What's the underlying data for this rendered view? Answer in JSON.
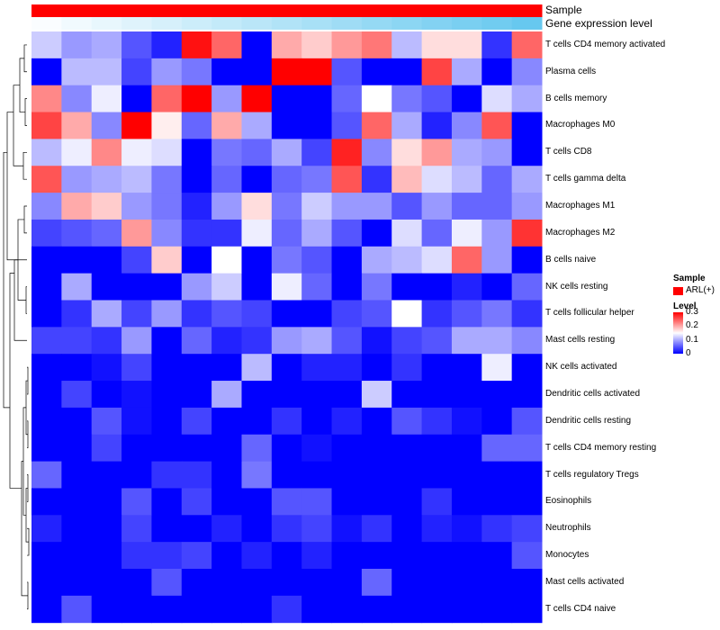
{
  "chart_data": {
    "type": "heatmap",
    "title": "",
    "rows": [
      "T cells CD4 memory activated",
      "Plasma cells",
      "B cells memory",
      "Macrophages M0",
      "T cells CD8",
      "T cells gamma delta",
      "Macrophages M1",
      "Macrophages M2",
      "B cells naive",
      "NK cells resting",
      "T cells follicular helper",
      "Mast cells resting",
      "NK cells activated",
      "Dendritic cells activated",
      "Dendritic cells resting",
      "T cells CD4 memory resting",
      "T cells regulatory  Tregs",
      "Eosinophils",
      "Neutrophils",
      "Monocytes",
      "Mast cells activated",
      "T cells CD4 naive"
    ],
    "n_columns": 17,
    "values": [
      [
        0.12,
        0.09,
        0.1,
        0.05,
        0.02,
        0.29,
        0.24,
        0.0,
        0.2,
        0.18,
        0.21,
        0.23,
        0.11,
        0.17,
        0.17,
        0.03,
        0.24
      ],
      [
        0.0,
        0.11,
        0.11,
        0.04,
        0.09,
        0.07,
        0.0,
        0.0,
        0.3,
        0.3,
        0.05,
        0.0,
        0.0,
        0.26,
        0.1,
        0.0,
        0.08
      ],
      [
        0.22,
        0.08,
        0.14,
        0.0,
        0.24,
        0.3,
        0.09,
        0.3,
        0.0,
        0.0,
        0.06,
        0.15,
        0.07,
        0.05,
        0.0,
        0.13,
        0.1
      ],
      [
        0.26,
        0.2,
        0.08,
        0.3,
        0.16,
        0.06,
        0.2,
        0.1,
        0.0,
        0.0,
        0.05,
        0.24,
        0.1,
        0.02,
        0.08,
        0.25,
        0.0
      ],
      [
        0.11,
        0.14,
        0.22,
        0.14,
        0.13,
        0.0,
        0.07,
        0.06,
        0.1,
        0.04,
        0.28,
        0.08,
        0.17,
        0.21,
        0.1,
        0.09,
        0.0
      ],
      [
        0.25,
        0.09,
        0.1,
        0.11,
        0.07,
        0.0,
        0.06,
        0.0,
        0.06,
        0.07,
        0.25,
        0.03,
        0.19,
        0.13,
        0.11,
        0.06,
        0.1
      ],
      [
        0.08,
        0.2,
        0.18,
        0.09,
        0.07,
        0.02,
        0.09,
        0.17,
        0.07,
        0.12,
        0.09,
        0.09,
        0.05,
        0.09,
        0.06,
        0.06,
        0.09
      ],
      [
        0.04,
        0.05,
        0.06,
        0.21,
        0.08,
        0.03,
        0.03,
        0.14,
        0.06,
        0.1,
        0.05,
        0.0,
        0.13,
        0.06,
        0.14,
        0.09,
        0.27
      ],
      [
        0.0,
        0.0,
        0.0,
        0.04,
        0.18,
        0.0,
        0.15,
        0.0,
        0.07,
        0.05,
        0.0,
        0.1,
        0.11,
        0.13,
        0.24,
        0.09,
        0.0
      ],
      [
        0.0,
        0.1,
        0.0,
        0.0,
        0.0,
        0.09,
        0.12,
        0.0,
        0.14,
        0.06,
        0.0,
        0.07,
        0.0,
        0.0,
        0.02,
        0.0,
        0.06
      ],
      [
        0.0,
        0.03,
        0.1,
        0.04,
        0.09,
        0.03,
        0.05,
        0.04,
        0.0,
        0.0,
        0.04,
        0.05,
        0.15,
        0.03,
        0.05,
        0.07,
        0.03
      ],
      [
        0.04,
        0.04,
        0.03,
        0.09,
        0.0,
        0.06,
        0.02,
        0.03,
        0.09,
        0.1,
        0.05,
        0.01,
        0.04,
        0.05,
        0.1,
        0.1,
        0.08
      ],
      [
        0.0,
        0.0,
        0.01,
        0.04,
        0.0,
        0.0,
        0.0,
        0.11,
        0.0,
        0.02,
        0.02,
        0.0,
        0.03,
        0.0,
        0.0,
        0.14,
        0.0
      ],
      [
        0.0,
        0.04,
        0.0,
        0.01,
        0.0,
        0.0,
        0.1,
        0.0,
        0.0,
        0.0,
        0.0,
        0.12,
        0.0,
        0.0,
        0.0,
        0.0,
        0.0
      ],
      [
        0.0,
        0.0,
        0.05,
        0.01,
        0.0,
        0.04,
        0.0,
        0.0,
        0.03,
        0.0,
        0.02,
        0.0,
        0.05,
        0.03,
        0.01,
        0.0,
        0.05
      ],
      [
        0.0,
        0.0,
        0.04,
        0.0,
        0.0,
        0.0,
        0.0,
        0.06,
        0.0,
        0.01,
        0.0,
        0.0,
        0.0,
        0.0,
        0.0,
        0.06,
        0.06
      ],
      [
        0.06,
        0.0,
        0.0,
        0.0,
        0.03,
        0.03,
        0.0,
        0.07,
        0.0,
        0.0,
        0.0,
        0.0,
        0.0,
        0.0,
        0.0,
        0.0,
        0.0
      ],
      [
        0.0,
        0.0,
        0.0,
        0.05,
        0.0,
        0.04,
        0.0,
        0.0,
        0.05,
        0.05,
        0.0,
        0.0,
        0.0,
        0.03,
        0.0,
        0.0,
        0.0
      ],
      [
        0.02,
        0.0,
        0.0,
        0.04,
        0.0,
        0.0,
        0.02,
        0.0,
        0.03,
        0.04,
        0.01,
        0.03,
        0.0,
        0.02,
        0.01,
        0.03,
        0.04
      ],
      [
        0.0,
        0.0,
        0.0,
        0.03,
        0.03,
        0.04,
        0.0,
        0.02,
        0.0,
        0.02,
        0.0,
        0.0,
        0.0,
        0.0,
        0.0,
        0.0,
        0.05
      ],
      [
        0.0,
        0.0,
        0.0,
        0.0,
        0.05,
        0.0,
        0.0,
        0.0,
        0.0,
        0.0,
        0.0,
        0.06,
        0.0,
        0.0,
        0.0,
        0.0,
        0.0
      ],
      [
        0.0,
        0.05,
        0.0,
        0.0,
        0.0,
        0.0,
        0.0,
        0.0,
        0.03,
        0.0,
        0.0,
        0.0,
        0.0,
        0.0,
        0.0,
        0.0,
        0.0
      ]
    ],
    "color_scale": {
      "min": 0,
      "max": 0.3,
      "low": "#0000ff",
      "mid": "#ffffff",
      "high": "#ff0000"
    },
    "annotations": [
      {
        "name": "Sample",
        "label": "Sample"
      },
      {
        "name": "Gene expression level",
        "label": "Gene expression level"
      }
    ],
    "annotation_values": {
      "sample": [
        "ARL(+)",
        "ARL(+)",
        "ARL(+)",
        "ARL(+)",
        "ARL(+)",
        "ARL(+)",
        "ARL(+)",
        "ARL(+)",
        "ARL(+)",
        "ARL(+)",
        "ARL(+)",
        "ARL(+)",
        "ARL(+)",
        "ARL(+)",
        "ARL(+)",
        "ARL(+)",
        "ARL(+)"
      ],
      "expression_level": [
        0.02,
        0.06,
        0.1,
        0.14,
        0.18,
        0.22,
        0.26,
        0.3,
        0.34,
        0.38,
        0.42,
        0.46,
        0.5,
        0.54,
        0.58,
        0.62,
        0.66
      ]
    },
    "annotation_colors": {
      "sample": "#ff0000",
      "expr_low": "#ffffff",
      "expr_high": "#5bc4ee"
    },
    "legend": {
      "sample_title": "Sample",
      "sample_entry": "ARL(+)",
      "level_title": "Level",
      "level_ticks": [
        "0.3",
        "0.2",
        "0.1",
        "0"
      ],
      "level_tick_values": [
        0.3,
        0.2,
        0.1,
        0
      ]
    },
    "dendrogram": "rows clustered"
  },
  "colors": {
    "grid": "#ffffff",
    "dendrogram": "#000000"
  }
}
